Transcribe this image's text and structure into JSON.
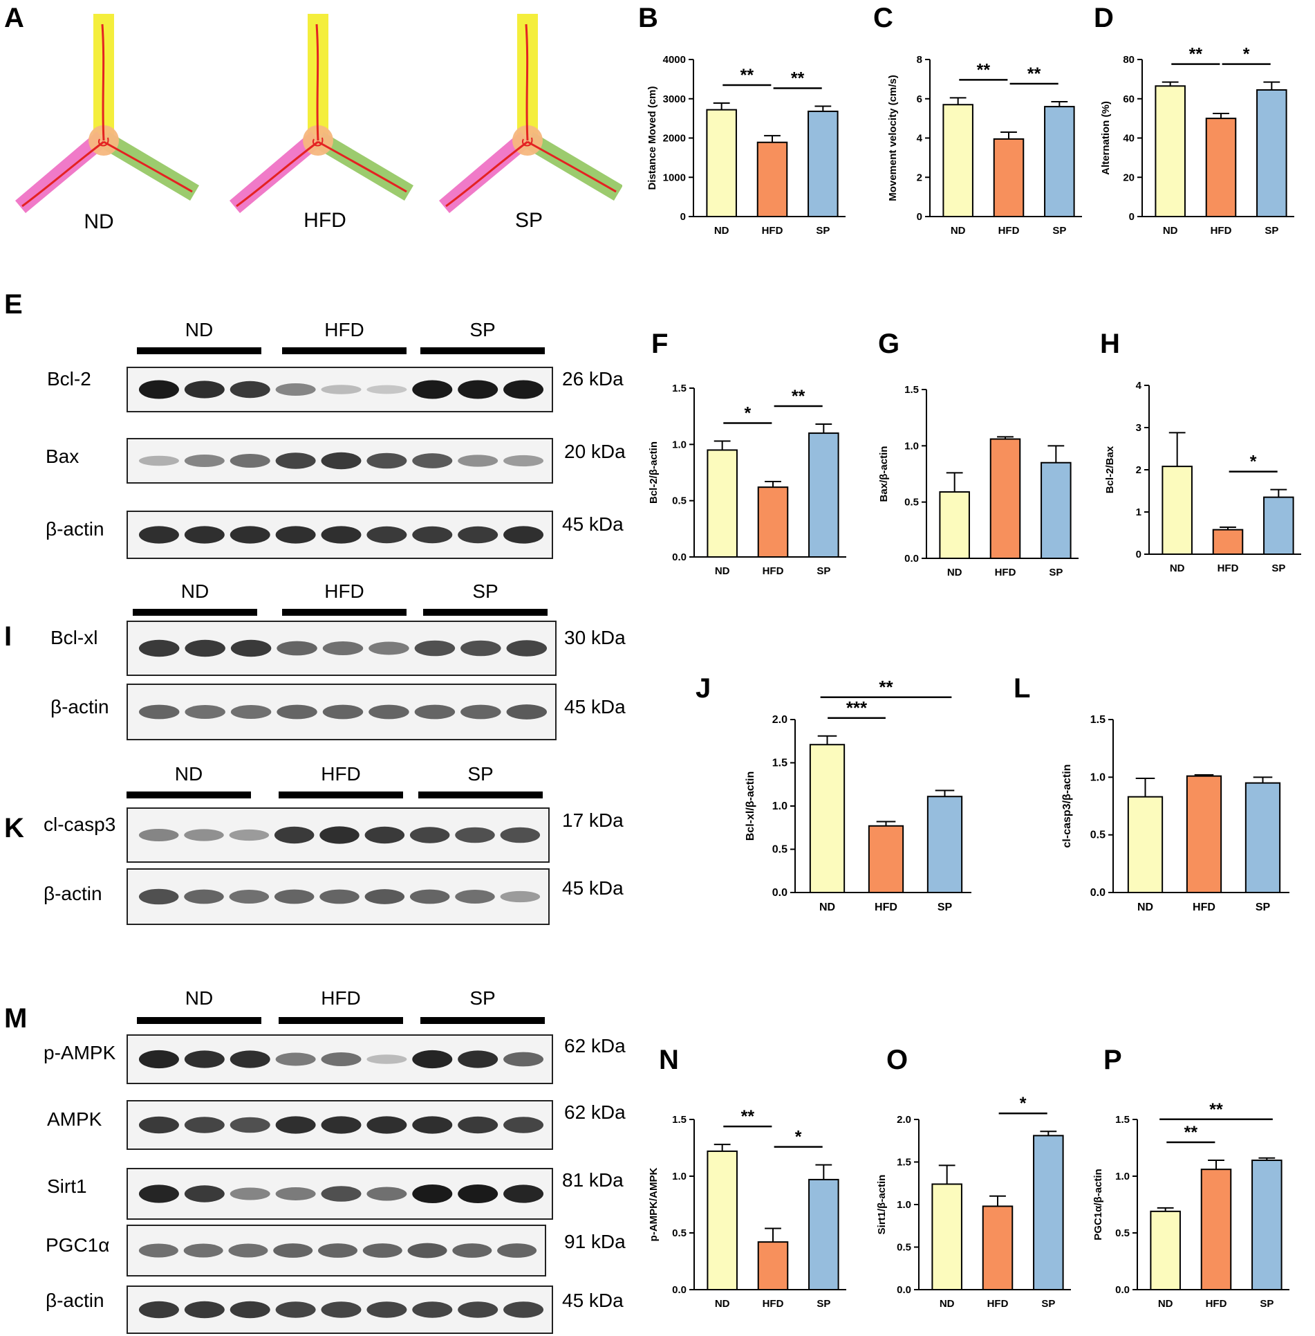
{
  "panel_letters": [
    "A",
    "B",
    "C",
    "D",
    "E",
    "F",
    "G",
    "H",
    "I",
    "J",
    "K",
    "L",
    "M",
    "N",
    "O",
    "P"
  ],
  "maze": {
    "groups": [
      "ND",
      "HFD",
      "SP"
    ],
    "arm_colors": {
      "top": "#f4ee3c",
      "left": "#f07ac8",
      "right": "#9ccb6e",
      "center": "#f5b77e",
      "track": "#e42222"
    }
  },
  "colors": {
    "ND": "#fcfbbd",
    "HFD": "#f7905c",
    "SP": "#96bddd"
  },
  "blots": {
    "E": {
      "groups": [
        "ND",
        "HFD",
        "SP"
      ],
      "rows": [
        {
          "label": "Bcl-2",
          "kda": "26 kDa"
        },
        {
          "label": "Bax",
          "kda": "20 kDa"
        },
        {
          "label": "β-actin",
          "kda": "45 kDa"
        }
      ]
    },
    "I": {
      "groups": [
        "ND",
        "HFD",
        "SP"
      ],
      "rows": [
        {
          "label": "Bcl-xl",
          "kda": "30 kDa"
        },
        {
          "label": "β-actin",
          "kda": "45 kDa"
        }
      ]
    },
    "K": {
      "groups": [
        "ND",
        "HFD",
        "SP"
      ],
      "rows": [
        {
          "label": "cl-casp3",
          "kda": "17 kDa"
        },
        {
          "label": "β-actin",
          "kda": "45 kDa"
        }
      ]
    },
    "M": {
      "groups": [
        "ND",
        "HFD",
        "SP"
      ],
      "rows": [
        {
          "label": "p-AMPK",
          "kda": "62 kDa"
        },
        {
          "label": "AMPK",
          "kda": "62 kDa"
        },
        {
          "label": "Sirt1",
          "kda": "81 kDa"
        },
        {
          "label": "PGC1α",
          "kda": "91 kDa"
        },
        {
          "label": "β-actin",
          "kda": "45 kDa"
        }
      ]
    }
  },
  "chart_data": [
    {
      "id": "B",
      "type": "bar",
      "categories": [
        "ND",
        "HFD",
        "SP"
      ],
      "values": [
        2720,
        1890,
        2680
      ],
      "errors": [
        170,
        170,
        130
      ],
      "ylabel": "Distance Moved (cm)",
      "ylim": [
        0,
        4000
      ],
      "ticks": [
        "0",
        "1000",
        "2000",
        "3000",
        "4000"
      ],
      "significance": [
        {
          "from": 0,
          "to": 1,
          "label": "**"
        },
        {
          "from": 1,
          "to": 2,
          "label": "**"
        }
      ]
    },
    {
      "id": "C",
      "type": "bar",
      "categories": [
        "ND",
        "HFD",
        "SP"
      ],
      "values": [
        5.7,
        3.95,
        5.6
      ],
      "errors": [
        0.35,
        0.35,
        0.25
      ],
      "ylabel": "Movement velocity (cm/s)",
      "ylim": [
        0,
        8
      ],
      "ticks": [
        "0",
        "2",
        "4",
        "6",
        "8"
      ],
      "significance": [
        {
          "from": 0,
          "to": 1,
          "label": "**"
        },
        {
          "from": 1,
          "to": 2,
          "label": "**"
        }
      ]
    },
    {
      "id": "D",
      "type": "bar",
      "categories": [
        "ND",
        "HFD",
        "SP"
      ],
      "values": [
        66.5,
        50,
        64.5
      ],
      "errors": [
        2,
        2.5,
        4
      ],
      "ylabel": "Alternation (%)",
      "ylim": [
        0,
        80
      ],
      "ticks": [
        "0",
        "20",
        "40",
        "60",
        "80"
      ],
      "significance": [
        {
          "from": 0,
          "to": 1,
          "label": "**"
        },
        {
          "from": 1,
          "to": 2,
          "label": "*"
        }
      ]
    },
    {
      "id": "F",
      "type": "bar",
      "categories": [
        "ND",
        "HFD",
        "SP"
      ],
      "values": [
        0.95,
        0.62,
        1.1
      ],
      "errors": [
        0.08,
        0.05,
        0.08
      ],
      "ylabel": "Bcl-2/β-actin",
      "ylim": [
        0,
        1.5
      ],
      "ticks": [
        "0.0",
        "0.5",
        "1.0",
        "1.5"
      ],
      "significance": [
        {
          "from": 0,
          "to": 1,
          "label": "*"
        },
        {
          "from": 1,
          "to": 2,
          "label": "**"
        }
      ]
    },
    {
      "id": "G",
      "type": "bar",
      "categories": [
        "ND",
        "HFD",
        "SP"
      ],
      "values": [
        0.59,
        1.06,
        0.85
      ],
      "errors": [
        0.17,
        0.02,
        0.15
      ],
      "ylabel": "Bax/β-actin",
      "ylim": [
        0,
        1.5
      ],
      "ticks": [
        "0.0",
        "0.5",
        "1.0",
        "1.5"
      ],
      "significance": []
    },
    {
      "id": "H",
      "type": "bar",
      "categories": [
        "ND",
        "HFD",
        "SP"
      ],
      "values": [
        2.08,
        0.58,
        1.35
      ],
      "errors": [
        0.8,
        0.06,
        0.18
      ],
      "ylabel": "Bcl-2/Bax",
      "ylim": [
        0,
        4
      ],
      "ticks": [
        "0",
        "1",
        "2",
        "3",
        "4"
      ],
      "significance": [
        {
          "from": 1,
          "to": 2,
          "label": "*"
        }
      ]
    },
    {
      "id": "J",
      "type": "bar",
      "categories": [
        "ND",
        "HFD",
        "SP"
      ],
      "values": [
        1.71,
        0.77,
        1.11
      ],
      "errors": [
        0.1,
        0.05,
        0.07
      ],
      "ylabel": "Bcl-xl/β-actin",
      "ylim": [
        0,
        2.0
      ],
      "ticks": [
        "0.0",
        "0.5",
        "1.0",
        "1.5",
        "2.0"
      ],
      "significance": [
        {
          "from": 0,
          "to": 1,
          "label": "***"
        },
        {
          "from": 0,
          "to": 2,
          "label": "**"
        }
      ]
    },
    {
      "id": "L",
      "type": "bar",
      "categories": [
        "ND",
        "HFD",
        "SP"
      ],
      "values": [
        0.83,
        1.01,
        0.95
      ],
      "errors": [
        0.16,
        0.01,
        0.05
      ],
      "ylabel": "cl-casp3/β-actin",
      "ylim": [
        0,
        1.5
      ],
      "ticks": [
        "0.0",
        "0.5",
        "1.0",
        "1.5"
      ],
      "significance": []
    },
    {
      "id": "N",
      "type": "bar",
      "categories": [
        "ND",
        "HFD",
        "SP"
      ],
      "values": [
        1.22,
        0.42,
        0.97
      ],
      "errors": [
        0.06,
        0.12,
        0.13
      ],
      "ylabel": "p-AMPK/AMPK",
      "ylim": [
        0,
        1.5
      ],
      "ticks": [
        "0.0",
        "0.5",
        "1.0",
        "1.5"
      ],
      "significance": [
        {
          "from": 0,
          "to": 1,
          "label": "**"
        },
        {
          "from": 1,
          "to": 2,
          "label": "*"
        }
      ]
    },
    {
      "id": "O",
      "type": "bar",
      "categories": [
        "ND",
        "HFD",
        "SP"
      ],
      "values": [
        1.24,
        0.98,
        1.81
      ],
      "errors": [
        0.22,
        0.12,
        0.05
      ],
      "ylabel": "Sirt1/β-actin",
      "ylim": [
        0,
        2.0
      ],
      "ticks": [
        "0.0",
        "0.5",
        "1.0",
        "1.5",
        "2.0"
      ],
      "significance": [
        {
          "from": 1,
          "to": 2,
          "label": "*"
        }
      ]
    },
    {
      "id": "P",
      "type": "bar",
      "categories": [
        "ND",
        "HFD",
        "SP"
      ],
      "values": [
        0.69,
        1.06,
        1.14
      ],
      "errors": [
        0.03,
        0.08,
        0.02
      ],
      "ylabel": "PGC1α/β-actin",
      "ylim": [
        0,
        1.5
      ],
      "ticks": [
        "0.0",
        "0.5",
        "1.0",
        "1.5"
      ],
      "significance": [
        {
          "from": 0,
          "to": 1,
          "label": "**"
        },
        {
          "from": 0,
          "to": 2,
          "label": "**"
        }
      ]
    }
  ]
}
